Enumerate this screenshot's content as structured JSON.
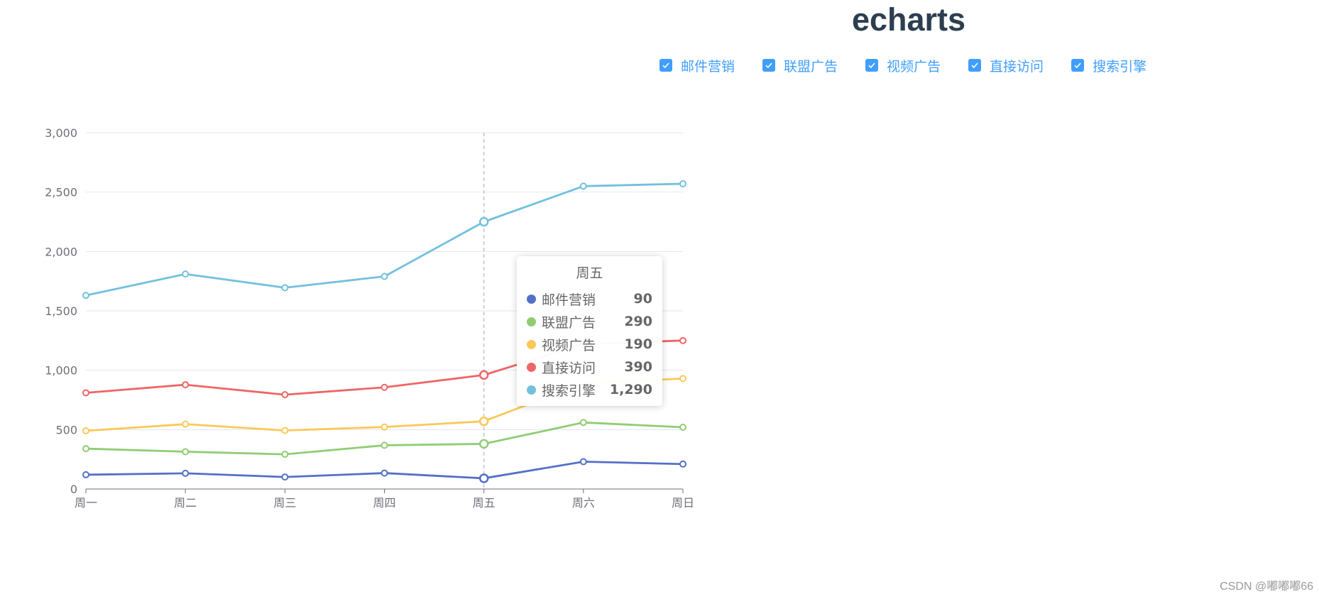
{
  "title": "echarts",
  "legend_checkboxes": [
    {
      "label": "邮件营销",
      "checked": true
    },
    {
      "label": "联盟广告",
      "checked": true
    },
    {
      "label": "视频广告",
      "checked": true
    },
    {
      "label": "直接访问",
      "checked": true
    },
    {
      "label": "搜索引擎",
      "checked": true
    }
  ],
  "chart_data": {
    "type": "line",
    "categories": [
      "周一",
      "周二",
      "周三",
      "周四",
      "周五",
      "周六",
      "周日"
    ],
    "ylim": [
      0,
      3000
    ],
    "yticks": [
      0,
      500,
      1000,
      1500,
      2000,
      2500,
      3000
    ],
    "ytick_labels": [
      "0",
      "500",
      "1,000",
      "1,500",
      "2,000",
      "2,500",
      "3,000"
    ],
    "stacked": true,
    "grid": true,
    "series": [
      {
        "name": "邮件营销",
        "color": "#5470c6",
        "values": [
          120,
          132,
          101,
          134,
          90,
          230,
          210
        ]
      },
      {
        "name": "联盟广告",
        "color": "#91cc75",
        "values": [
          220,
          182,
          191,
          234,
          290,
          330,
          310
        ]
      },
      {
        "name": "视频广告",
        "color": "#fac858",
        "values": [
          150,
          232,
          201,
          154,
          190,
          330,
          410
        ]
      },
      {
        "name": "直接访问",
        "color": "#ee6666",
        "values": [
          320,
          332,
          301,
          334,
          390,
          330,
          320
        ]
      },
      {
        "name": "搜索引擎",
        "color": "#73c0de",
        "values": [
          820,
          932,
          901,
          934,
          1290,
          1330,
          1320
        ]
      }
    ]
  },
  "tooltip": {
    "title": "周五",
    "rows": [
      {
        "name": "邮件营销",
        "value": "90",
        "color": "#5470c6"
      },
      {
        "name": "联盟广告",
        "value": "290",
        "color": "#91cc75"
      },
      {
        "name": "视频广告",
        "value": "190",
        "color": "#fac858"
      },
      {
        "name": "直接访问",
        "value": "390",
        "color": "#ee6666"
      },
      {
        "name": "搜索引擎",
        "value": "1,290",
        "color": "#73c0de"
      }
    ]
  },
  "watermark": "CSDN @嘟嘟嘟66"
}
